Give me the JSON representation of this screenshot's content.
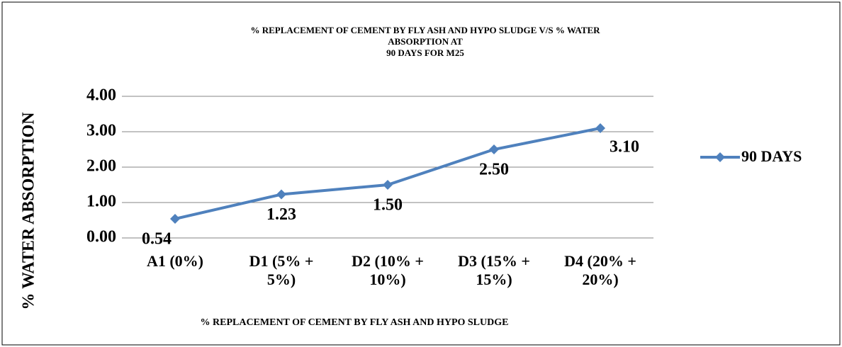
{
  "chart_data": {
    "type": "line",
    "title": [
      "% REPLACEMENT OF CEMENT BY FLY ASH AND HYPO SLUDGE  V/S % WATER",
      "ABSORPTION AT",
      "90 DAYS FOR M25"
    ],
    "x_label": "% REPLACEMENT OF CEMENT BY FLY ASH AND HYPO SLUDGE",
    "y_label": "% WATER ABSORPTION",
    "categories": [
      "A1 (0%)",
      "D1 (5% + 5%)",
      "D2 (10% + 10%)",
      "D3 (15% + 15%)",
      "D4 (20% + 20%)"
    ],
    "series": [
      {
        "name": "90 DAYS",
        "color": "#4f81bd",
        "values": [
          0.54,
          1.23,
          1.5,
          2.5,
          3.1
        ],
        "value_labels": [
          "0.54",
          "1.23",
          "1.50",
          "2.50",
          "3.10"
        ]
      }
    ],
    "ylim": [
      0,
      4
    ],
    "yticks": [
      {
        "value": 0,
        "label": "0.00"
      },
      {
        "value": 1,
        "label": "1.00"
      },
      {
        "value": 2,
        "label": "2.00"
      },
      {
        "value": 3,
        "label": "3.00"
      },
      {
        "value": 4,
        "label": "4.00"
      }
    ],
    "grid": true,
    "legend": "right"
  }
}
